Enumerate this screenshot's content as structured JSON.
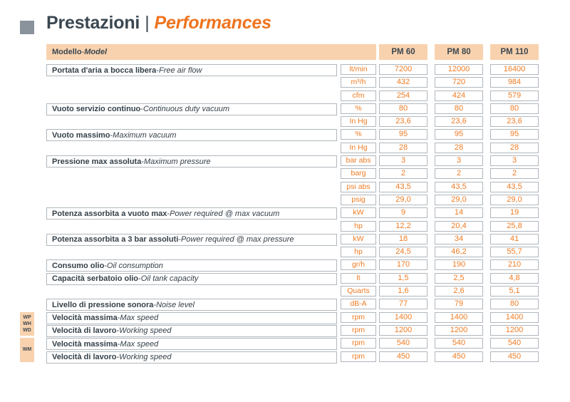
{
  "title": {
    "italian": "Prestazioni",
    "separator": "|",
    "english": "Performances"
  },
  "ui": {
    "dash": " - "
  },
  "colors": {
    "accent_orange": "#ee7b23",
    "header_peach": "#f8d2ae",
    "heading_navy": "#3b4750",
    "border_gray": "#b0b7bd",
    "bullet_gray": "#8a939c"
  },
  "table": {
    "model_header": {
      "label_it": "Modello",
      "label_en": "Model"
    },
    "models": [
      "PM 60",
      "PM 80",
      "PM 110"
    ],
    "rows": [
      {
        "label_it": "Portata d'aria a bocca libera",
        "label_en": "Free air flow",
        "unit": "lt/min",
        "values": [
          "7200",
          "12000",
          "16400"
        ]
      },
      {
        "label_it": "",
        "label_en": "",
        "unit": "m³/h",
        "values": [
          "432",
          "720",
          "984"
        ]
      },
      {
        "label_it": "",
        "label_en": "",
        "unit": "cfm",
        "values": [
          "254",
          "424",
          "579"
        ]
      },
      {
        "label_it": "Vuoto servizio continuo",
        "label_en": "Continuous duty vacuum",
        "unit": "%",
        "values": [
          "80",
          "80",
          "80"
        ]
      },
      {
        "label_it": "",
        "label_en": "",
        "unit": "In Hg",
        "values": [
          "23,6",
          "23,6",
          "23,6"
        ]
      },
      {
        "label_it": "Vuoto massimo",
        "label_en": "Maximum vacuum",
        "unit": "%",
        "values": [
          "95",
          "95",
          "95"
        ]
      },
      {
        "label_it": "",
        "label_en": "",
        "unit": "In Hg",
        "values": [
          "28",
          "28",
          "28"
        ]
      },
      {
        "label_it": "Pressione max assoluta",
        "label_en": "Maximum pressure",
        "unit": "bar abs",
        "values": [
          "3",
          "3",
          "3"
        ]
      },
      {
        "label_it": "",
        "label_en": "",
        "unit": "barg",
        "values": [
          "2",
          "2",
          "2"
        ]
      },
      {
        "label_it": "",
        "label_en": "",
        "unit": "psi abs",
        "values": [
          "43,5",
          "43,5",
          "43,5"
        ]
      },
      {
        "label_it": "",
        "label_en": "",
        "unit": "psig",
        "values": [
          "29,0",
          "29,0",
          "29,0"
        ]
      },
      {
        "label_it": "Potenza assorbita a vuoto max",
        "label_en": "Power required @ max vacuum",
        "unit": "kW",
        "values": [
          "9",
          "14",
          "19"
        ]
      },
      {
        "label_it": "",
        "label_en": "",
        "unit": "hp",
        "values": [
          "12,2",
          "20,4",
          "25,8"
        ]
      },
      {
        "label_it": "Potenza assorbita a 3 bar assoluti",
        "label_en": "Power required @ max pressure",
        "unit": "kW",
        "values": [
          "18",
          "34",
          "41"
        ]
      },
      {
        "label_it": "",
        "label_en": "",
        "unit": "hp",
        "values": [
          "24,5",
          "46,2",
          "55,7"
        ]
      },
      {
        "label_it": "Consumo olio",
        "label_en": "Oil consumption",
        "unit": "gr/h",
        "values": [
          "170",
          "190",
          "210"
        ]
      },
      {
        "label_it": "Capacità serbatoio olio",
        "label_en": "Oil tank capacity",
        "unit": "lt",
        "values": [
          "1,5",
          "2,5",
          "4,8"
        ]
      },
      {
        "label_it": "",
        "label_en": "",
        "unit": "Quarts",
        "values": [
          "1,6",
          "2,6",
          "5,1"
        ]
      },
      {
        "label_it": "Livello di pressione sonora",
        "label_en": "Noise level",
        "unit": "dB-A",
        "values": [
          "77",
          "79",
          "80"
        ]
      },
      {
        "label_it": "Velocità massima",
        "label_en": "Max speed",
        "unit": "rpm",
        "values": [
          "1400",
          "1400",
          "1400"
        ]
      },
      {
        "label_it": "Velocità di lavoro",
        "label_en": "Working speed",
        "unit": "rpm",
        "values": [
          "1200",
          "1200",
          "1200"
        ]
      },
      {
        "label_it": "Velocità massima",
        "label_en": "Max speed",
        "unit": "rpm",
        "values": [
          "540",
          "540",
          "540"
        ]
      },
      {
        "label_it": "Velocità di lavoro",
        "label_en": "Working speed",
        "unit": "rpm",
        "values": [
          "450",
          "450",
          "450"
        ]
      }
    ],
    "side_tabs": [
      {
        "lines": [
          "WP",
          "WH",
          "WD"
        ]
      },
      {
        "lines": [
          "WM"
        ]
      }
    ]
  }
}
